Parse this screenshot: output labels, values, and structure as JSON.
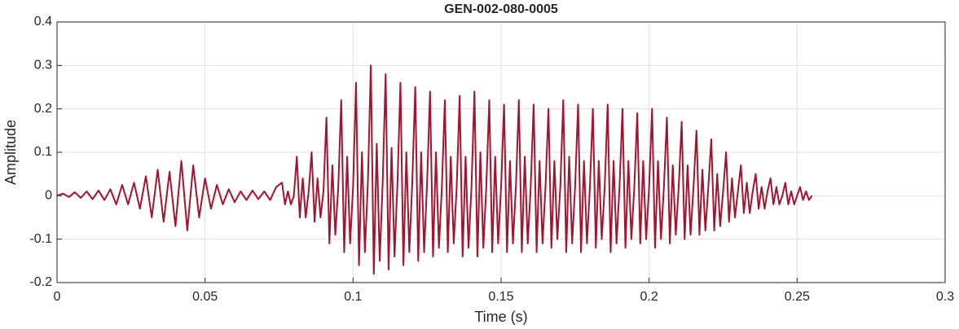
{
  "chart_data": {
    "type": "line",
    "title": "GEN-002-080-0005",
    "x_label": "Time (s)",
    "y_label": "Amplitude",
    "x": [
      0,
      0.002,
      0.004,
      0.006,
      0.008,
      0.01,
      0.012,
      0.014,
      0.016,
      0.018,
      0.02,
      0.022,
      0.024,
      0.026,
      0.028,
      0.03,
      0.032,
      0.034,
      0.036,
      0.038,
      0.04,
      0.042,
      0.044,
      0.046,
      0.048,
      0.05,
      0.052,
      0.054,
      0.056,
      0.058,
      0.06,
      0.062,
      0.064,
      0.066,
      0.068,
      0.07,
      0.072,
      0.074,
      0.076,
      0.077,
      0.078,
      0.079,
      0.08,
      0.081,
      0.082,
      0.083,
      0.084,
      0.085,
      0.086,
      0.087,
      0.088,
      0.089,
      0.09,
      0.091,
      0.092,
      0.093,
      0.094,
      0.095,
      0.096,
      0.097,
      0.098,
      0.099,
      0.1,
      0.101,
      0.102,
      0.103,
      0.104,
      0.105,
      0.106,
      0.107,
      0.108,
      0.109,
      0.11,
      0.111,
      0.112,
      0.113,
      0.114,
      0.115,
      0.116,
      0.117,
      0.118,
      0.119,
      0.12,
      0.121,
      0.122,
      0.123,
      0.124,
      0.125,
      0.126,
      0.127,
      0.128,
      0.129,
      0.13,
      0.131,
      0.132,
      0.133,
      0.134,
      0.135,
      0.136,
      0.137,
      0.138,
      0.139,
      0.14,
      0.141,
      0.142,
      0.143,
      0.144,
      0.145,
      0.146,
      0.147,
      0.148,
      0.149,
      0.15,
      0.151,
      0.152,
      0.153,
      0.154,
      0.155,
      0.156,
      0.157,
      0.158,
      0.159,
      0.16,
      0.161,
      0.162,
      0.163,
      0.164,
      0.165,
      0.166,
      0.167,
      0.168,
      0.169,
      0.17,
      0.171,
      0.172,
      0.173,
      0.174,
      0.175,
      0.176,
      0.177,
      0.178,
      0.179,
      0.18,
      0.181,
      0.182,
      0.183,
      0.184,
      0.185,
      0.186,
      0.187,
      0.188,
      0.189,
      0.19,
      0.191,
      0.192,
      0.193,
      0.194,
      0.195,
      0.196,
      0.197,
      0.198,
      0.199,
      0.2,
      0.201,
      0.202,
      0.203,
      0.204,
      0.205,
      0.206,
      0.207,
      0.208,
      0.209,
      0.21,
      0.211,
      0.212,
      0.213,
      0.214,
      0.215,
      0.216,
      0.217,
      0.218,
      0.219,
      0.22,
      0.221,
      0.222,
      0.223,
      0.224,
      0.225,
      0.226,
      0.227,
      0.228,
      0.229,
      0.23,
      0.231,
      0.232,
      0.233,
      0.234,
      0.235,
      0.236,
      0.237,
      0.238,
      0.239,
      0.24,
      0.241,
      0.242,
      0.243,
      0.244,
      0.245,
      0.246,
      0.247,
      0.248,
      0.249,
      0.25,
      0.251,
      0.252,
      0.253,
      0.254,
      0.255
    ],
    "values": [
      0,
      0.005,
      -0.003,
      0.008,
      -0.005,
      0.01,
      -0.008,
      0.012,
      -0.01,
      0.015,
      -0.02,
      0.025,
      -0.02,
      0.03,
      -0.03,
      0.045,
      -0.05,
      0.06,
      -0.06,
      0.055,
      -0.07,
      0.08,
      -0.08,
      0.07,
      -0.05,
      0.04,
      -0.03,
      0.025,
      -0.02,
      0.015,
      -0.015,
      0.01,
      -0.01,
      0.012,
      -0.008,
      0.01,
      -0.01,
      0.02,
      0.03,
      -0.02,
      0.01,
      -0.02,
      0,
      0.09,
      -0.05,
      0.04,
      -0.05,
      0.01,
      0.1,
      -0.06,
      0.04,
      -0.05,
      0.01,
      0.18,
      -0.11,
      0.07,
      -0.09,
      0.02,
      0.22,
      -0.13,
      0.09,
      -0.11,
      0.02,
      0.26,
      -0.16,
      0.1,
      -0.13,
      0.03,
      0.3,
      -0.18,
      0.12,
      -0.15,
      0.03,
      0.28,
      -0.17,
      0.11,
      -0.14,
      0.03,
      0.26,
      -0.16,
      0.1,
      -0.13,
      0.03,
      0.25,
      -0.15,
      0.1,
      -0.13,
      0.03,
      0.24,
      -0.14,
      0.1,
      -0.12,
      0.02,
      0.22,
      -0.13,
      0.09,
      -0.11,
      0.02,
      0.23,
      -0.14,
      0.09,
      -0.12,
      0.02,
      0.24,
      -0.14,
      0.1,
      -0.12,
      0.02,
      0.22,
      -0.13,
      0.09,
      -0.11,
      0.02,
      0.21,
      -0.13,
      0.08,
      -0.11,
      0.02,
      0.22,
      -0.13,
      0.09,
      -0.11,
      0.02,
      0.21,
      -0.13,
      0.08,
      -0.11,
      0.02,
      0.2,
      -0.12,
      0.08,
      -0.1,
      0.02,
      0.22,
      -0.13,
      0.09,
      -0.11,
      0.02,
      0.21,
      -0.13,
      0.08,
      -0.11,
      0.02,
      0.2,
      -0.12,
      0.08,
      -0.1,
      0.02,
      0.21,
      -0.13,
      0.08,
      -0.11,
      0.02,
      0.2,
      -0.12,
      0.08,
      -0.1,
      0.02,
      0.19,
      -0.11,
      0.08,
      -0.1,
      0.02,
      0.2,
      -0.12,
      0.08,
      -0.1,
      0.02,
      0.18,
      -0.11,
      0.07,
      -0.09,
      0.02,
      0.17,
      -0.1,
      0.07,
      -0.09,
      0.02,
      0.15,
      -0.09,
      0.06,
      -0.08,
      0.02,
      0.13,
      -0.08,
      0.05,
      -0.07,
      0.01,
      0.1,
      -0.06,
      0.04,
      -0.05,
      0.01,
      0.07,
      -0.04,
      0.03,
      -0.04,
      0.01,
      0.05,
      -0.03,
      0.02,
      -0.03,
      0.01,
      0.04,
      -0.02,
      0.02,
      -0.02,
      0,
      0.03,
      -0.02,
      0.01,
      -0.02,
      0,
      0.02,
      -0.01,
      0.01,
      -0.01,
      0
    ],
    "color": "#a2142f",
    "xlim": [
      0,
      0.3
    ],
    "xticks": [
      0,
      0.05,
      0.1,
      0.15,
      0.2,
      0.25,
      0.3
    ],
    "ylim": [
      -0.2,
      0.4
    ],
    "yticks": [
      -0.2,
      -0.1,
      0,
      0.1,
      0.2,
      0.3,
      0.4
    ],
    "grid": true
  }
}
